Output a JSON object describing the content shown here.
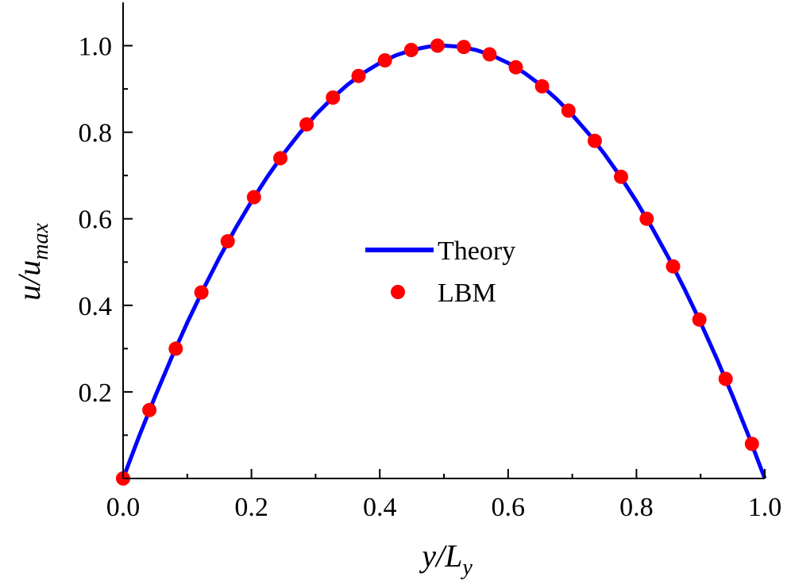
{
  "chart_data": {
    "type": "line",
    "xlabel": {
      "main": "y/L",
      "sub": "y"
    },
    "ylabel": {
      "main": "u/u",
      "sub": "max"
    },
    "xlim": [
      0.0,
      1.0
    ],
    "ylim": [
      0.0,
      1.1
    ],
    "x_ticks": [
      "0.0",
      "0.2",
      "0.4",
      "0.6",
      "0.8",
      "1.0"
    ],
    "y_ticks": [
      "0.2",
      "0.4",
      "0.6",
      "0.8",
      "1.0"
    ],
    "grid": false,
    "legend_position": "center",
    "series": [
      {
        "name": "Theory",
        "kind": "line",
        "color": "#0000ff",
        "x": [
          0.0,
          0.025,
          0.05,
          0.075,
          0.1,
          0.125,
          0.15,
          0.175,
          0.2,
          0.225,
          0.25,
          0.275,
          0.3,
          0.325,
          0.35,
          0.375,
          0.4,
          0.425,
          0.45,
          0.475,
          0.5,
          0.525,
          0.55,
          0.575,
          0.6,
          0.625,
          0.65,
          0.675,
          0.7,
          0.725,
          0.75,
          0.775,
          0.8,
          0.825,
          0.85,
          0.875,
          0.9,
          0.925,
          0.95,
          0.975,
          1.0
        ],
        "y": [
          0.0,
          0.0975,
          0.19,
          0.2775,
          0.36,
          0.4375,
          0.51,
          0.5775,
          0.64,
          0.6975,
          0.75,
          0.7975,
          0.84,
          0.8775,
          0.91,
          0.9375,
          0.96,
          0.9775,
          0.99,
          0.9975,
          1.0,
          0.9975,
          0.99,
          0.9775,
          0.96,
          0.9375,
          0.91,
          0.8775,
          0.84,
          0.7975,
          0.75,
          0.6975,
          0.64,
          0.5775,
          0.51,
          0.4375,
          0.36,
          0.2775,
          0.19,
          0.0975,
          0.0
        ]
      },
      {
        "name": "LBM",
        "kind": "scatter",
        "color": "#ff0000",
        "x": [
          0.0,
          0.041,
          0.082,
          0.122,
          0.163,
          0.204,
          0.245,
          0.286,
          0.327,
          0.367,
          0.408,
          0.449,
          0.49,
          0.531,
          0.571,
          0.612,
          0.653,
          0.694,
          0.735,
          0.776,
          0.816,
          0.857,
          0.898,
          0.939,
          0.98
        ],
        "y": [
          0.0,
          0.158,
          0.3,
          0.43,
          0.548,
          0.65,
          0.74,
          0.818,
          0.88,
          0.93,
          0.966,
          0.99,
          1.0,
          0.997,
          0.98,
          0.95,
          0.906,
          0.85,
          0.78,
          0.697,
          0.6,
          0.49,
          0.367,
          0.23,
          0.08
        ]
      }
    ]
  }
}
